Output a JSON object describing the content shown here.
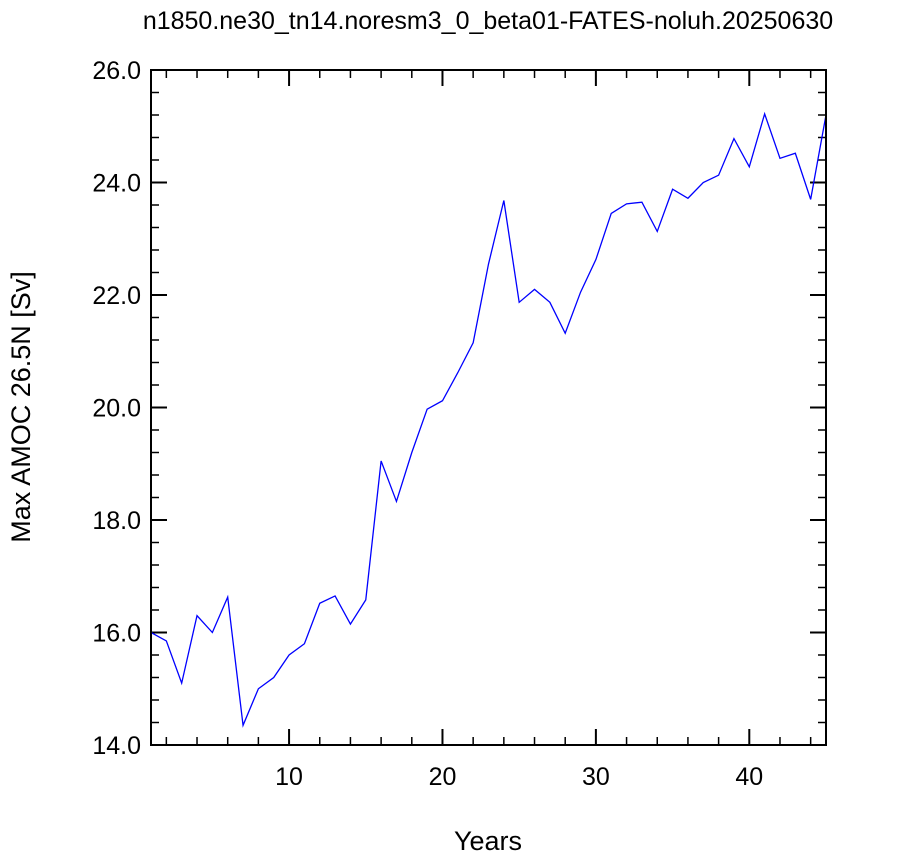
{
  "chart_data": {
    "type": "line",
    "title": "n1850.ne30_tn14.noresm3_0_beta01-FATES-noluh.20250630",
    "xlabel": "Years",
    "ylabel": "Max AMOC 26.5N [Sv]",
    "xlim": [
      1,
      45
    ],
    "ylim": [
      14.0,
      26.0
    ],
    "xticks": [
      10,
      20,
      30,
      40
    ],
    "yticks": [
      14.0,
      16.0,
      18.0,
      20.0,
      22.0,
      24.0,
      26.0
    ],
    "xtick_labels": [
      "10",
      "20",
      "30",
      "40"
    ],
    "ytick_labels": [
      "14.0",
      "16.0",
      "18.0",
      "20.0",
      "22.0",
      "24.0",
      "26.0"
    ],
    "grid": false,
    "series": [
      {
        "color": "#0000ff",
        "x": [
          1,
          2,
          3,
          4,
          5,
          6,
          7,
          8,
          9,
          10,
          11,
          12,
          13,
          14,
          15,
          16,
          17,
          18,
          19,
          20,
          21,
          22,
          23,
          24,
          25,
          26,
          27,
          28,
          29,
          30,
          31,
          32,
          33,
          34,
          35,
          36,
          37,
          38,
          39,
          40,
          41,
          42,
          43,
          44,
          45
        ],
        "y": [
          16.0,
          15.85,
          15.1,
          16.3,
          16.0,
          16.63,
          14.35,
          15.0,
          15.2,
          15.6,
          15.8,
          16.52,
          16.65,
          16.15,
          16.58,
          19.05,
          18.33,
          19.2,
          19.97,
          20.12,
          20.62,
          21.15,
          22.55,
          23.68,
          21.87,
          22.1,
          21.87,
          21.32,
          22.05,
          22.63,
          23.45,
          23.62,
          23.65,
          23.13,
          23.88,
          23.72,
          24.0,
          24.13,
          24.78,
          24.28,
          25.22,
          24.43,
          24.52,
          23.7,
          25.2
        ]
      }
    ]
  }
}
